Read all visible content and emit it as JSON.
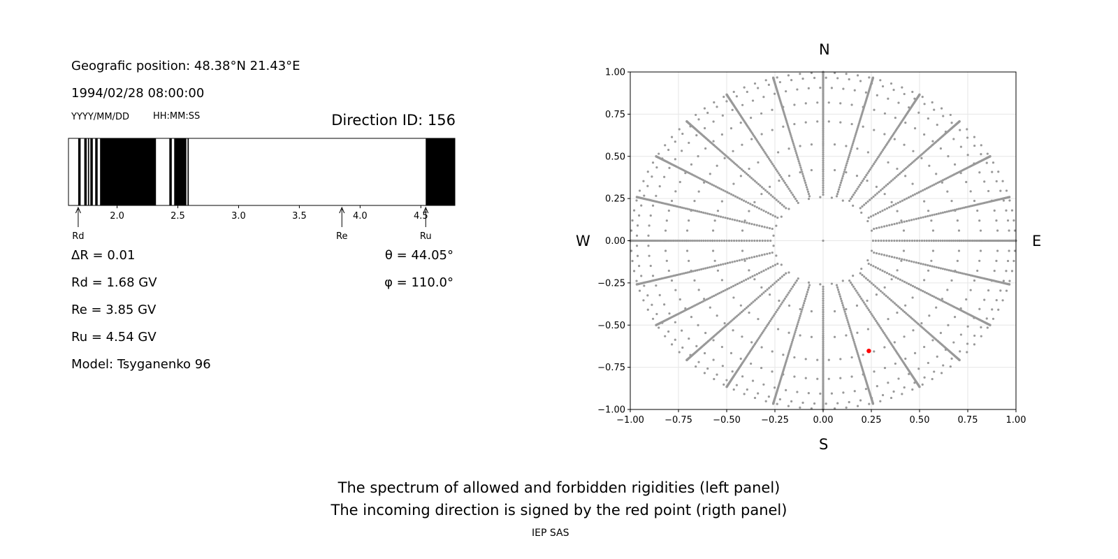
{
  "left_panel": {
    "position_label": "Geografic position: 48.38°N 21.43°E",
    "datetime": "1994/02/28 08:00:00",
    "date_format_hint": "YYYY/MM/DD",
    "time_format_hint": "HH:MM:SS",
    "direction_id": "Direction ID: 156",
    "delta_r": "ΔR = 0.01",
    "rd": "Rd = 1.68 GV",
    "re": "Re = 3.85 GV",
    "ru": "Ru = 4.54 GV",
    "model": "Model: Tsyganenko 96",
    "theta": "θ = 44.05°",
    "phi": "φ = 110.0°"
  },
  "right_panel": {
    "north": "N",
    "south": "S",
    "west": "W",
    "east": "E"
  },
  "captions": {
    "line1": "The spectrum of allowed and forbidden rigidities (left panel)",
    "line2": "The incoming direction is signed by the red point (rigth panel)",
    "credit": "IEP SAS"
  },
  "chart_data": [
    {
      "type": "bar",
      "name": "rigidity-spectrum",
      "xlim": [
        1.6,
        4.78
      ],
      "xticks": [
        2.0,
        2.5,
        3.0,
        3.5,
        4.0,
        4.5
      ],
      "xtick_labels": [
        "2.0",
        "2.5",
        "3.0",
        "3.5",
        "4.0",
        "4.5"
      ],
      "forbidden_bands": [
        [
          1.68,
          1.7
        ],
        [
          1.73,
          1.75
        ],
        [
          1.76,
          1.77
        ],
        [
          1.78,
          1.8
        ],
        [
          1.82,
          1.84
        ],
        [
          1.86,
          2.32
        ],
        [
          2.43,
          2.45
        ],
        [
          2.47,
          2.57
        ],
        [
          2.58,
          2.59
        ],
        [
          4.54,
          4.78
        ]
      ],
      "markers": [
        {
          "label": "Rd",
          "value": 1.68
        },
        {
          "label": "Re",
          "value": 3.85
        },
        {
          "label": "Ru",
          "value": 4.54
        }
      ],
      "colors": {
        "forbidden": "#000000",
        "allowed": "#ffffff"
      }
    },
    {
      "type": "scatter",
      "name": "incoming-directions",
      "xlim": [
        -1.0,
        1.0
      ],
      "ylim": [
        -1.0,
        1.0
      ],
      "xticks": [
        -1.0,
        -0.75,
        -0.5,
        -0.25,
        0.0,
        0.25,
        0.5,
        0.75,
        1.0
      ],
      "xtick_labels": [
        "−1.00",
        "−0.75",
        "−0.50",
        "−0.25",
        "0.00",
        "0.25",
        "0.50",
        "0.75",
        "1.00"
      ],
      "yticks": [
        1.0,
        0.75,
        0.5,
        0.25,
        0.0,
        -0.25,
        -0.5,
        -0.75,
        -1.0
      ],
      "ytick_labels": [
        "1.00",
        "0.75",
        "0.50",
        "0.25",
        "0.00",
        "−0.25",
        "−0.50",
        "−0.75",
        "−1.00"
      ],
      "grid": true,
      "grid_directions": {
        "zenith_rings_deg": [
          15,
          25,
          35,
          45,
          55,
          65,
          75,
          85
        ],
        "azimuth_step_deg": 15,
        "radial_points_per_line": 90
      },
      "selected_point": {
        "x": 0.237,
        "y": -0.653
      },
      "colors": {
        "points": "#999999",
        "selected": "#ff0000"
      }
    }
  ]
}
